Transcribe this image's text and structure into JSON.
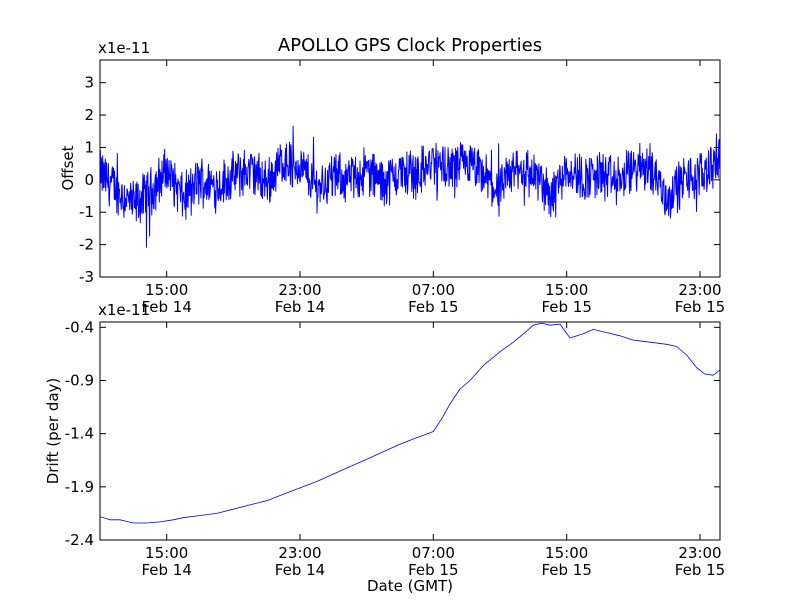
{
  "chart_data": [
    {
      "type": "line",
      "title": "APOLLO GPS Clock Properties",
      "ylabel": "Offset",
      "y_scale_note": "x1e-11",
      "ylim": [
        -3,
        3.7
      ],
      "yticks": [
        {
          "value": 3,
          "label": "3"
        },
        {
          "value": 2,
          "label": "2"
        },
        {
          "value": 1,
          "label": "1"
        },
        {
          "value": 0,
          "label": "0"
        },
        {
          "value": -1,
          "label": "-1"
        },
        {
          "value": -2,
          "label": "-2"
        },
        {
          "value": -3,
          "label": "-3"
        }
      ],
      "xlim_hours": [
        11.0,
        48.2
      ],
      "xticks": [
        {
          "hours": 15,
          "time": "15:00",
          "date": "Feb 14"
        },
        {
          "hours": 23,
          "time": "23:00",
          "date": "Feb 14"
        },
        {
          "hours": 31,
          "time": "07:00",
          "date": "Feb 15"
        },
        {
          "hours": 39,
          "time": "15:00",
          "date": "Feb 15"
        },
        {
          "hours": 47,
          "time": "23:00",
          "date": "Feb 15"
        }
      ],
      "color": "#0000ff",
      "series": [
        {
          "x": [
            11.0,
            12.0,
            13.0,
            14.0,
            15.0,
            16.0,
            17.0,
            18.0,
            19.0,
            20.0,
            21.0,
            22.0,
            23.0,
            24.0,
            25.0,
            26.0,
            27.0,
            28.0,
            29.0,
            30.0,
            31.0,
            32.0,
            33.0,
            34.0,
            35.0,
            36.0,
            37.0,
            38.0,
            39.0,
            40.0,
            41.0,
            42.0,
            43.0,
            44.0,
            45.0,
            46.0,
            47.0,
            48.2
          ],
          "y": [
            0.2,
            -0.3,
            -0.8,
            -0.4,
            0.3,
            -0.6,
            0.0,
            -0.2,
            0.1,
            0.3,
            -0.1,
            0.6,
            0.4,
            -0.2,
            0.1,
            0.0,
            0.3,
            -0.1,
            0.2,
            0.2,
            0.5,
            0.3,
            0.5,
            0.1,
            -0.4,
            0.4,
            0.2,
            -0.5,
            0.4,
            0.0,
            0.2,
            -0.1,
            0.3,
            0.5,
            -0.6,
            0.0,
            0.1,
            0.7
          ]
        }
      ]
    },
    {
      "type": "line",
      "xlabel": "Date (GMT)",
      "ylabel": "Drift (per day)",
      "y_scale_note": "x1e-11",
      "ylim": [
        -2.4,
        -0.35
      ],
      "yticks": [
        {
          "value": -0.4,
          "label": "-0.4"
        },
        {
          "value": -0.9,
          "label": "-0.9"
        },
        {
          "value": -1.4,
          "label": "-1.4"
        },
        {
          "value": -1.9,
          "label": "-1.9"
        },
        {
          "value": -2.4,
          "label": "-2.4"
        }
      ],
      "xlim_hours": [
        11.0,
        48.2
      ],
      "xticks": [
        {
          "hours": 15,
          "time": "15:00",
          "date": "Feb 14"
        },
        {
          "hours": 23,
          "time": "23:00",
          "date": "Feb 14"
        },
        {
          "hours": 31,
          "time": "07:00",
          "date": "Feb 15"
        },
        {
          "hours": 39,
          "time": "15:00",
          "date": "Feb 15"
        },
        {
          "hours": 47,
          "time": "23:00",
          "date": "Feb 15"
        }
      ],
      "color": "#0000ff",
      "series": [
        {
          "x": [
            11.0,
            11.6,
            12.2,
            13.0,
            13.8,
            14.6,
            15.4,
            16.0,
            17.0,
            18.0,
            19.0,
            20.0,
            21.0,
            22.0,
            23.0,
            24.0,
            25.0,
            26.0,
            27.0,
            28.0,
            29.0,
            29.8,
            30.5,
            31.0,
            31.5,
            32.0,
            32.6,
            33.2,
            34.0,
            35.0,
            35.8,
            36.5,
            37.0,
            37.5,
            38.0,
            38.6,
            39.2,
            40.0,
            40.6,
            41.4,
            42.2,
            43.0,
            44.0,
            45.0,
            45.6,
            46.2,
            46.8,
            47.3,
            47.8,
            48.2
          ],
          "y": [
            -2.18,
            -2.21,
            -2.21,
            -2.24,
            -2.24,
            -2.23,
            -2.21,
            -2.19,
            -2.17,
            -2.15,
            -2.11,
            -2.07,
            -2.03,
            -1.97,
            -1.91,
            -1.85,
            -1.78,
            -1.71,
            -1.64,
            -1.57,
            -1.5,
            -1.45,
            -1.41,
            -1.38,
            -1.26,
            -1.12,
            -0.98,
            -0.9,
            -0.76,
            -0.63,
            -0.54,
            -0.45,
            -0.38,
            -0.36,
            -0.38,
            -0.37,
            -0.5,
            -0.46,
            -0.42,
            -0.45,
            -0.48,
            -0.52,
            -0.54,
            -0.56,
            -0.58,
            -0.66,
            -0.78,
            -0.84,
            -0.85,
            -0.8
          ]
        }
      ]
    }
  ]
}
